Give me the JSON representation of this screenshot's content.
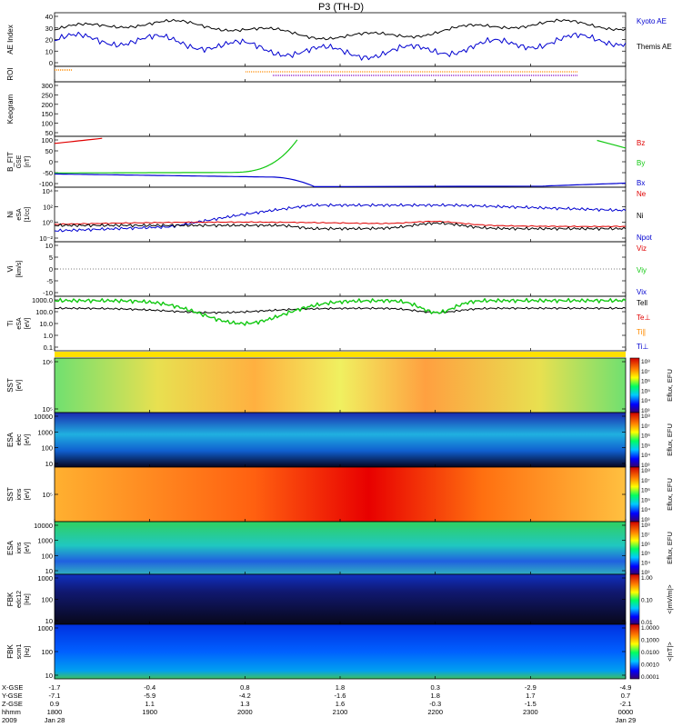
{
  "title": "P3 (TH-D)",
  "colors": {
    "red": "#e00000",
    "green": "#10c810",
    "blue": "#0000d0",
    "black": "#000000",
    "orange": "#ff8c00"
  },
  "chart_data": {
    "type": "line",
    "xaxis": {
      "rows": [
        {
          "label": "X-GSE",
          "values": [
            "-1.7",
            "-0.4",
            "0.8",
            "1.8",
            "0.3",
            "-2.9",
            "-4.9"
          ]
        },
        {
          "label": "Y-GSE",
          "values": [
            "-7.1",
            "-5.9",
            "-4.2",
            "-1.6",
            "1.8",
            "1.7",
            "0.7"
          ]
        },
        {
          "label": "Z-GSE",
          "values": [
            "0.9",
            "1.1",
            "1.3",
            "1.6",
            "-0.3",
            "-1.5",
            "-2.1"
          ]
        },
        {
          "label": "hhmm",
          "values": [
            "1800",
            "1900",
            "2000",
            "2100",
            "2200",
            "2300",
            "0000"
          ]
        }
      ],
      "year": "2009",
      "date_start": "Jan 28",
      "date_end": "Jan 29"
    },
    "panels": [
      {
        "id": "ae",
        "ylabel": "AE Index",
        "yticks": [
          "0",
          "10",
          "20",
          "30",
          "40"
        ],
        "ylim": [
          0,
          40
        ],
        "legend": [
          "Kyoto AE",
          "Themis AE"
        ]
      },
      {
        "id": "roi",
        "ylabel": "ROI",
        "yticks": []
      },
      {
        "id": "keogram",
        "ylabel": "Keogram",
        "yticks": [
          "50",
          "100",
          "150",
          "200",
          "250",
          "300"
        ],
        "ylim": [
          50,
          300
        ]
      },
      {
        "id": "bfit",
        "ylabel": "B_FIT",
        "ylabel2": "GSE",
        "unit": "[nT]",
        "yticks": [
          "-100",
          "-50",
          "0",
          "50",
          "100"
        ],
        "ylim": [
          -100,
          100
        ],
        "legend": [
          "Bz",
          "By",
          "Bx"
        ]
      },
      {
        "id": "ni",
        "ylabel": "Ni",
        "ylabel2": "eSA",
        "unit": "[1/cc]",
        "yticks": [
          "10⁻²",
          "10⁰",
          "10²",
          "10⁴"
        ],
        "log": true,
        "legend": [
          "Ne",
          "Ni",
          "Npot"
        ]
      },
      {
        "id": "vi",
        "ylabel": "Vi",
        "unit": "[km/s]",
        "yticks": [
          "-10",
          "-5",
          "0",
          "5",
          "10"
        ],
        "ylim": [
          -10,
          10
        ],
        "legend": [
          "Viz",
          "Viy",
          "Vix"
        ]
      },
      {
        "id": "ti",
        "ylabel": "Ti",
        "ylabel2": "eSA",
        "unit": "[eV]",
        "yticks": [
          "0.1",
          "1.0",
          "10.0",
          "100.0",
          "1000.0"
        ],
        "log": true,
        "legend": [
          "Tell",
          "Te⊥",
          "Ti∥",
          "Ti⊥"
        ]
      },
      {
        "id": "sst_e",
        "ylabel": "SST",
        "unit": "[eV]",
        "yticks": [
          "10⁵",
          "10⁶"
        ],
        "colorbar_label": "Eflux, EFU",
        "colorbar_ticks": [
          "10³",
          "10⁴",
          "10⁵",
          "10⁶",
          "10⁷",
          "10⁸"
        ]
      },
      {
        "id": "esa_e",
        "ylabel": "ESA",
        "ylabel2": "elec",
        "unit": "[eV]",
        "yticks": [
          "10",
          "100",
          "1000",
          "10000"
        ],
        "colorbar_label": "Eflux, EFU",
        "colorbar_ticks": [
          "10³",
          "10⁴",
          "10⁵",
          "10⁶",
          "10⁷",
          "10⁸"
        ]
      },
      {
        "id": "sst_i",
        "ylabel": "SST",
        "ylabel2": "ions",
        "unit": "[eV]",
        "yticks": [
          "10⁵"
        ],
        "colorbar_label": "Eflux, EFU",
        "colorbar_ticks": [
          "10³",
          "10⁴",
          "10⁵",
          "10⁶",
          "10⁷",
          "10⁸"
        ]
      },
      {
        "id": "esa_i",
        "ylabel": "ESA",
        "ylabel2": "ions",
        "unit": "[eV]",
        "yticks": [
          "10",
          "100",
          "1000",
          "10000"
        ],
        "colorbar_label": "Eflux, EFU",
        "colorbar_ticks": [
          "10³",
          "10⁴",
          "10⁵",
          "10⁶",
          "10⁷",
          "10⁸"
        ]
      },
      {
        "id": "fbk1",
        "ylabel": "FBK",
        "ylabel2": "edc12",
        "unit": "[Hz]",
        "yticks": [
          "10",
          "100",
          "1000"
        ],
        "colorbar_label": "<|mV/m|>",
        "colorbar_ticks": [
          "0.01",
          "0.10",
          "1.00"
        ]
      },
      {
        "id": "fbk2",
        "ylabel": "FBK",
        "ylabel2": "scm1",
        "unit": "[Hz]",
        "yticks": [
          "10",
          "100",
          "1000"
        ],
        "colorbar_label": "<|nT|>",
        "colorbar_ticks": [
          "0.0001",
          "0.0010",
          "0.0100",
          "0.1000",
          "1.0000"
        ]
      }
    ]
  }
}
